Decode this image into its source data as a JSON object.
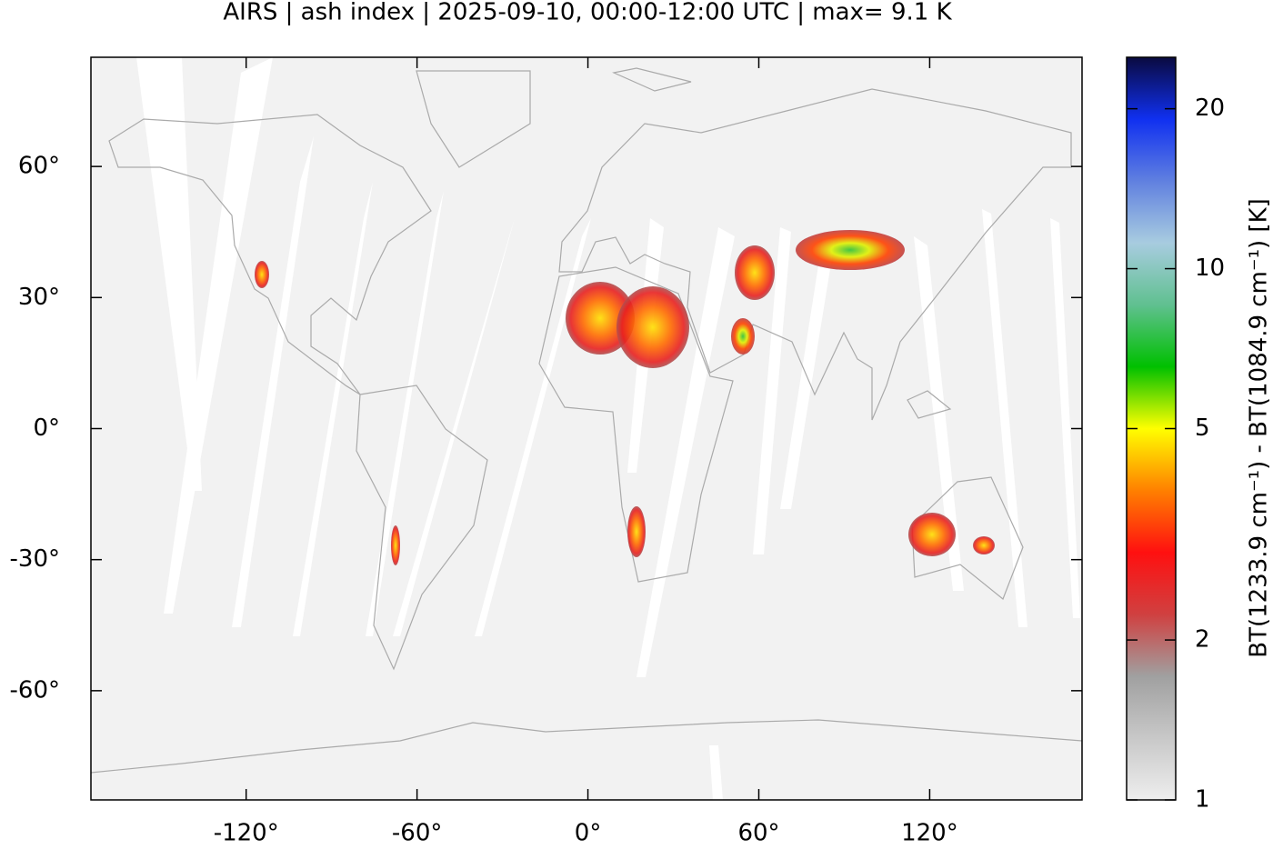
{
  "chart_data": {
    "type": "map",
    "title": "AIRS | ash index | 2025-09-10, 00:00-12:00 UTC | max= 9.1 K",
    "xlim": [
      -174.5,
      173.5
    ],
    "ylim": [
      -85,
      85
    ],
    "xticks": [
      {
        "value": -120,
        "label": "-120°"
      },
      {
        "value": -60,
        "label": "-60°"
      },
      {
        "value": 0,
        "label": "0°"
      },
      {
        "value": 60,
        "label": "60°"
      },
      {
        "value": 120,
        "label": "120°"
      }
    ],
    "yticks": [
      {
        "value": 60,
        "label": "60°"
      },
      {
        "value": 30,
        "label": "30°"
      },
      {
        "value": 0,
        "label": "0°"
      },
      {
        "value": -30,
        "label": "-30°"
      },
      {
        "value": -60,
        "label": "-60°"
      }
    ],
    "background": "#f2f2f2",
    "colorbar": {
      "label": "BT(1233.9 cm⁻¹) - BT(1084.9 cm⁻¹) [K]",
      "lim": [
        1,
        25
      ],
      "log": true,
      "ticks": [
        1,
        2,
        5,
        10,
        20
      ],
      "colors": [
        "#eeeeee",
        "#c8c8c8",
        "#a0a0a0",
        "#d04040",
        "#ff1010",
        "#ff8000",
        "#ffff00",
        "#00c000",
        "#60c090",
        "#a8cce0",
        "#6080e0",
        "#1030f0",
        "#0a0a40"
      ]
    }
  }
}
